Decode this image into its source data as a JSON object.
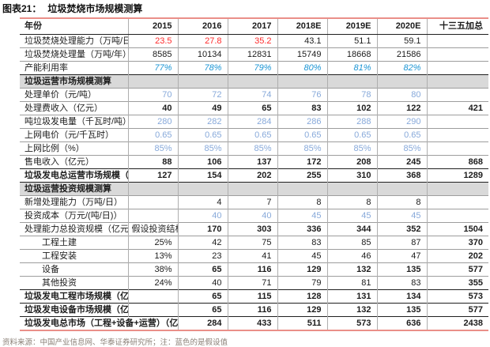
{
  "title": {
    "prefix": "图表21：",
    "text": "垃圾焚烧市场规模测算"
  },
  "accent_colors": {
    "rule_red": "#ea8f89",
    "value_red": "#ff2b2b",
    "value_blue_italic": "#1d96d5",
    "assumed_blue": "#87a9da",
    "section_bg": "#d9d9d9"
  },
  "table": {
    "columns": [
      "年份",
      "2015",
      "2016",
      "2017",
      "2018E",
      "2019E",
      "2020E",
      "十三五加总"
    ],
    "rows": [
      {
        "label": "垃圾焚烧处理能力（万吨/日）",
        "values": [
          "23.5",
          "27.8",
          "35.2",
          "43.1",
          "51.1",
          "59.1",
          ""
        ],
        "styles": [
          "r",
          "r",
          "r",
          "",
          "",
          "",
          ""
        ]
      },
      {
        "label": "垃圾焚烧处理量（万吨/年）",
        "values": [
          "8585",
          "10134",
          "12831",
          "15749",
          "18668",
          "21586",
          ""
        ],
        "styles": [
          "",
          "",
          "",
          "",
          "",
          "",
          ""
        ]
      },
      {
        "label": "产能利用率",
        "values": [
          "77%",
          "78%",
          "79%",
          "80%",
          "81%",
          "82%",
          ""
        ],
        "styles": [
          "i",
          "i",
          "i",
          "i",
          "i",
          "i",
          ""
        ]
      },
      {
        "section": true,
        "label": "垃圾运营市场规模测算"
      },
      {
        "label": "处理单价（元/吨）",
        "values": [
          "70",
          "72",
          "74",
          "76",
          "78",
          "80",
          ""
        ],
        "styles": [
          "a",
          "a",
          "a",
          "a",
          "a",
          "a",
          ""
        ]
      },
      {
        "label": "处理费收入（亿元）",
        "values": [
          "40",
          "49",
          "65",
          "83",
          "102",
          "122",
          "421"
        ],
        "styles": [
          "b",
          "b",
          "b",
          "b",
          "b",
          "b",
          "b"
        ]
      },
      {
        "label": "吨垃圾发电量（千瓦时/吨）",
        "values": [
          "280",
          "282",
          "284",
          "286",
          "288",
          "290",
          ""
        ],
        "styles": [
          "a",
          "a",
          "a",
          "a",
          "a",
          "a",
          ""
        ]
      },
      {
        "label": "上网电价（元/千瓦时）",
        "values": [
          "0.65",
          "0.65",
          "0.65",
          "0.65",
          "0.65",
          "0.65",
          ""
        ],
        "styles": [
          "a",
          "a",
          "a",
          "a",
          "a",
          "a",
          ""
        ]
      },
      {
        "label": "上网比例（%）",
        "values": [
          "85%",
          "85%",
          "85%",
          "85%",
          "85%",
          "85%",
          ""
        ],
        "styles": [
          "a",
          "a",
          "a",
          "a",
          "a",
          "a",
          ""
        ]
      },
      {
        "label": "售电收入（亿元）",
        "values": [
          "88",
          "106",
          "137",
          "172",
          "208",
          "245",
          "868"
        ],
        "styles": [
          "b",
          "b",
          "b",
          "b",
          "b",
          "b",
          "b"
        ]
      },
      {
        "label": "垃圾发电总运营市场规模（亿元）",
        "labelBold": true,
        "emph": true,
        "values": [
          "127",
          "154",
          "202",
          "255",
          "310",
          "368",
          "1289"
        ],
        "styles": [
          "b",
          "b",
          "b",
          "b",
          "b",
          "b",
          "b"
        ]
      },
      {
        "section": true,
        "label": "垃圾运营投资规模测算"
      },
      {
        "label": "新增处理能力（万吨/日）",
        "values": [
          "",
          "4",
          "7",
          "8",
          "8",
          "8",
          ""
        ],
        "styles": [
          "",
          "",
          "",
          "",
          "",
          "",
          ""
        ]
      },
      {
        "label": "投资成本（万元/(吨/日)）",
        "values": [
          "",
          "40",
          "40",
          "45",
          "45",
          "45",
          ""
        ],
        "styles": [
          "",
          "a",
          "a",
          "a",
          "a",
          "a",
          ""
        ]
      },
      {
        "label": "处理能力总投资规模（亿元）",
        "values": [
          "假设投资结构",
          "170",
          "303",
          "336",
          "344",
          "352",
          "1504"
        ],
        "styles": [
          "",
          "b",
          "b",
          "b",
          "b",
          "b",
          "b"
        ]
      },
      {
        "label": "工程土建",
        "indent": true,
        "values": [
          "25%",
          "42",
          "75",
          "83",
          "85",
          "87",
          "370"
        ],
        "styles": [
          "",
          "",
          "",
          "",
          "",
          "",
          "b"
        ]
      },
      {
        "label": "工程安装",
        "indent": true,
        "values": [
          "13%",
          "23",
          "41",
          "45",
          "46",
          "47",
          "202"
        ],
        "styles": [
          "",
          "",
          "",
          "",
          "",
          "",
          "b"
        ]
      },
      {
        "label": "设备",
        "indent": true,
        "values": [
          "38%",
          "65",
          "116",
          "129",
          "132",
          "135",
          "577"
        ],
        "styles": [
          "",
          "b",
          "b",
          "b",
          "b",
          "b",
          "b"
        ]
      },
      {
        "label": "其他投资",
        "indent": true,
        "values": [
          "24%",
          "40",
          "71",
          "79",
          "81",
          "83",
          "355"
        ],
        "styles": [
          "",
          "",
          "",
          "",
          "",
          "",
          "b"
        ]
      },
      {
        "label": "垃圾发电工程市场规模（亿元）",
        "labelBold": true,
        "emph": true,
        "values": [
          "",
          "65",
          "115",
          "128",
          "131",
          "134",
          "573"
        ],
        "styles": [
          "",
          "b",
          "b",
          "b",
          "b",
          "b",
          "b"
        ]
      },
      {
        "label": "垃圾发电设备市场规模（亿元）",
        "labelBold": true,
        "emph": true,
        "values": [
          "",
          "65",
          "116",
          "129",
          "132",
          "135",
          "577"
        ],
        "styles": [
          "",
          "b",
          "b",
          "b",
          "b",
          "b",
          "b"
        ]
      },
      {
        "label": "垃圾发电总市场（工程+设备+运营）（亿元）",
        "labelBold": true,
        "emph": true,
        "labelColspan": 2,
        "values": [
          "284",
          "433",
          "511",
          "573",
          "636",
          "2438"
        ],
        "styles": [
          "b",
          "b",
          "b",
          "b",
          "b",
          "b"
        ]
      }
    ]
  },
  "footer": {
    "source": "资料来源：中国产业信息网、华泰证券研究所；注：蓝色的是假设值"
  }
}
